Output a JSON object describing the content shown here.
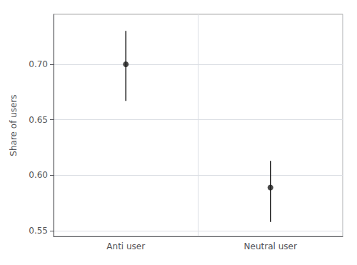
{
  "chart_data": {
    "type": "scatter",
    "categories": [
      "Anti user",
      "Neutral user"
    ],
    "values": [
      0.7,
      0.589
    ],
    "ci_lower": [
      0.667,
      0.558
    ],
    "ci_upper": [
      0.73,
      0.613
    ],
    "ylabel": "Share of users",
    "ylim": [
      0.545,
      0.745
    ],
    "yticks": [
      0.55,
      {
        "value": 0.6,
        "label": "0.60"
      },
      0.65,
      {
        "value": 0.7,
        "label": "0.70"
      }
    ],
    "grid": true,
    "color": "#1a1a1a"
  }
}
